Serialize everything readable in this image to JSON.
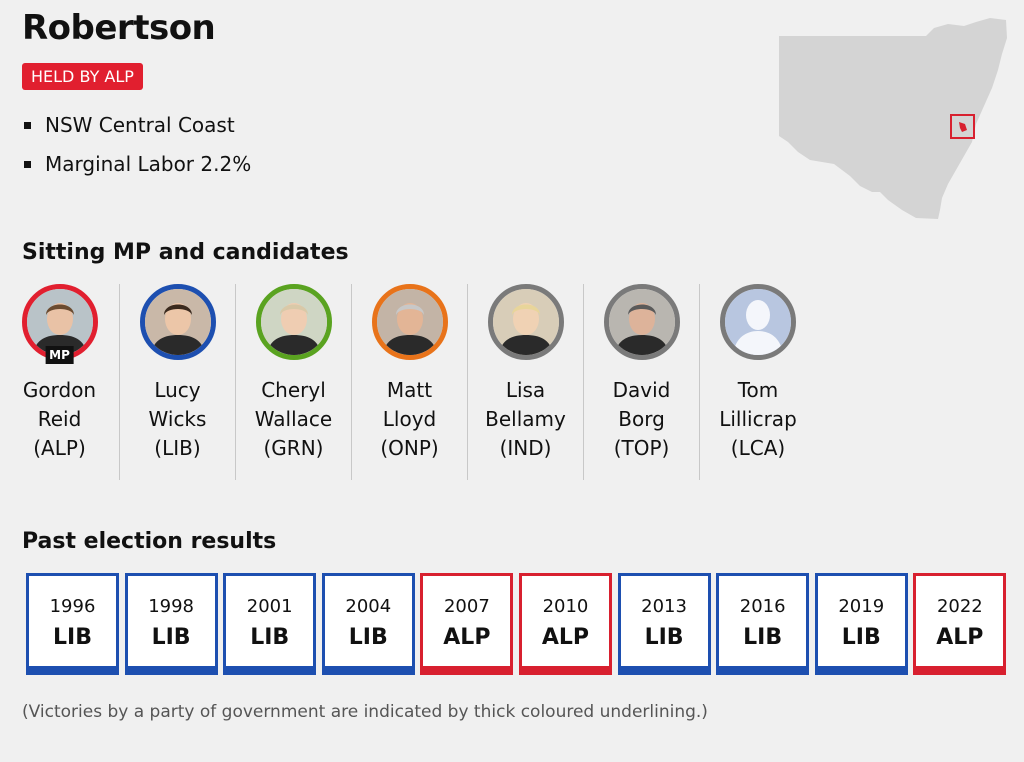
{
  "electorate": {
    "name": "Robertson",
    "held_by": "HELD BY ALP",
    "facts": [
      "NSW Central Coast",
      "Marginal Labor 2.2%"
    ]
  },
  "colors": {
    "ALP": "#e11f2f",
    "LIB": "#1d4fb0",
    "GRN": "#5aa320",
    "ONP": "#e8731a",
    "IND": "#8a8a8a",
    "TOP": "#8a8a8a",
    "LCA": "#8a8a8a"
  },
  "candidates_section": {
    "title": "Sitting MP and candidates",
    "mp_badge": "MP",
    "candidates": [
      {
        "first": "Gordon",
        "last": "Reid",
        "party": "(ALP)",
        "ring": "#e11f2f",
        "sitting": true
      },
      {
        "first": "Lucy",
        "last": "Wicks",
        "party": "(LIB)",
        "ring": "#1d4fb0",
        "sitting": false
      },
      {
        "first": "Cheryl",
        "last": "Wallace",
        "party": "(GRN)",
        "ring": "#5aa320",
        "sitting": false
      },
      {
        "first": "Matt",
        "last": "Lloyd",
        "party": "(ONP)",
        "ring": "#e8731a",
        "sitting": false
      },
      {
        "first": "Lisa",
        "last": "Bellamy",
        "party": "(IND)",
        "ring": "#7a7a7a",
        "sitting": false
      },
      {
        "first": "David",
        "last": "Borg",
        "party": "(TOP)",
        "ring": "#7a7a7a",
        "sitting": false
      },
      {
        "first": "Tom",
        "last": "Lillicrap",
        "party": "(LCA)",
        "ring": "#7a7a7a",
        "sitting": false
      }
    ]
  },
  "results_section": {
    "title": "Past election results",
    "results": [
      {
        "year": "1996",
        "party": "LIB"
      },
      {
        "year": "1998",
        "party": "LIB"
      },
      {
        "year": "2001",
        "party": "LIB"
      },
      {
        "year": "2004",
        "party": "LIB"
      },
      {
        "year": "2007",
        "party": "ALP"
      },
      {
        "year": "2010",
        "party": "ALP"
      },
      {
        "year": "2013",
        "party": "LIB"
      },
      {
        "year": "2016",
        "party": "LIB"
      },
      {
        "year": "2019",
        "party": "LIB"
      },
      {
        "year": "2022",
        "party": "ALP"
      }
    ],
    "footnote": "(Victories by a party of government are indicated by thick coloured underlining.)"
  }
}
